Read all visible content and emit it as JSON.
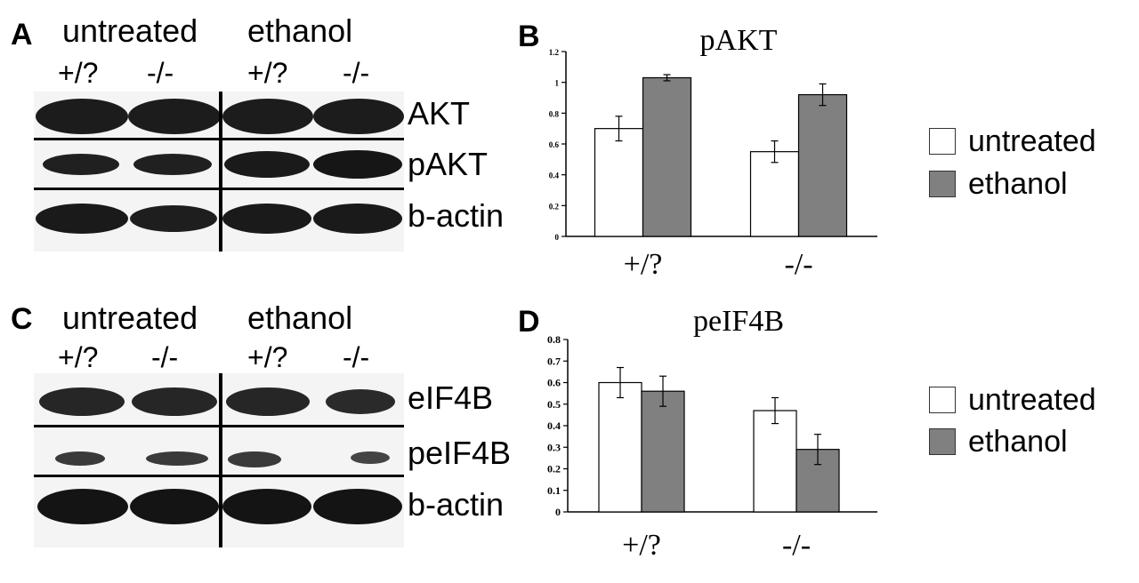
{
  "figure": {
    "panelA": {
      "letter": "A",
      "group_untreated": "untreated",
      "group_ethanol": "ethanol",
      "lanes": [
        "+/?",
        "-/-",
        "+/?",
        "-/-"
      ],
      "rows": [
        "AKT",
        "pAKT",
        "b-actin"
      ]
    },
    "panelC": {
      "letter": "C",
      "group_untreated": "untreated",
      "group_ethanol": "ethanol",
      "lanes": [
        "+/?",
        "-/-",
        "+/?",
        "-/-"
      ],
      "rows": [
        "eIF4B",
        "peIF4B",
        "b-actin"
      ]
    },
    "panelB": {
      "letter": "B"
    },
    "panelD": {
      "letter": "D"
    },
    "legend": {
      "untreated": "untreated",
      "ethanol": "ethanol"
    },
    "colors": {
      "untreated": "#ffffff",
      "ethanol": "#808080",
      "outline": "#000000"
    }
  },
  "chart_data": [
    {
      "panel": "B",
      "type": "bar",
      "title": "pAKT",
      "categories": [
        "+/?",
        "-/-"
      ],
      "series": [
        {
          "name": "untreated",
          "values": [
            0.7,
            0.55
          ],
          "errors": [
            0.08,
            0.07
          ]
        },
        {
          "name": "ethanol",
          "values": [
            1.03,
            0.92
          ],
          "errors": [
            0.02,
            0.07
          ]
        }
      ],
      "ylim": [
        0,
        1.2
      ],
      "yticks": [
        "0",
        "0.2",
        "0.4",
        "0.6",
        "0.8",
        "1",
        "1.2"
      ],
      "legend": "right"
    },
    {
      "panel": "D",
      "type": "bar",
      "title": "peIF4B",
      "categories": [
        "+/?",
        "-/-"
      ],
      "series": [
        {
          "name": "untreated",
          "values": [
            0.6,
            0.47
          ],
          "errors": [
            0.07,
            0.06
          ]
        },
        {
          "name": "ethanol",
          "values": [
            0.56,
            0.29
          ],
          "errors": [
            0.07,
            0.07
          ]
        }
      ],
      "ylim": [
        0,
        0.8
      ],
      "yticks": [
        "0",
        "0.1",
        "0.2",
        "0.3",
        "0.4",
        "0.5",
        "0.6",
        "0.7",
        "0.8"
      ],
      "legend": "right"
    }
  ]
}
